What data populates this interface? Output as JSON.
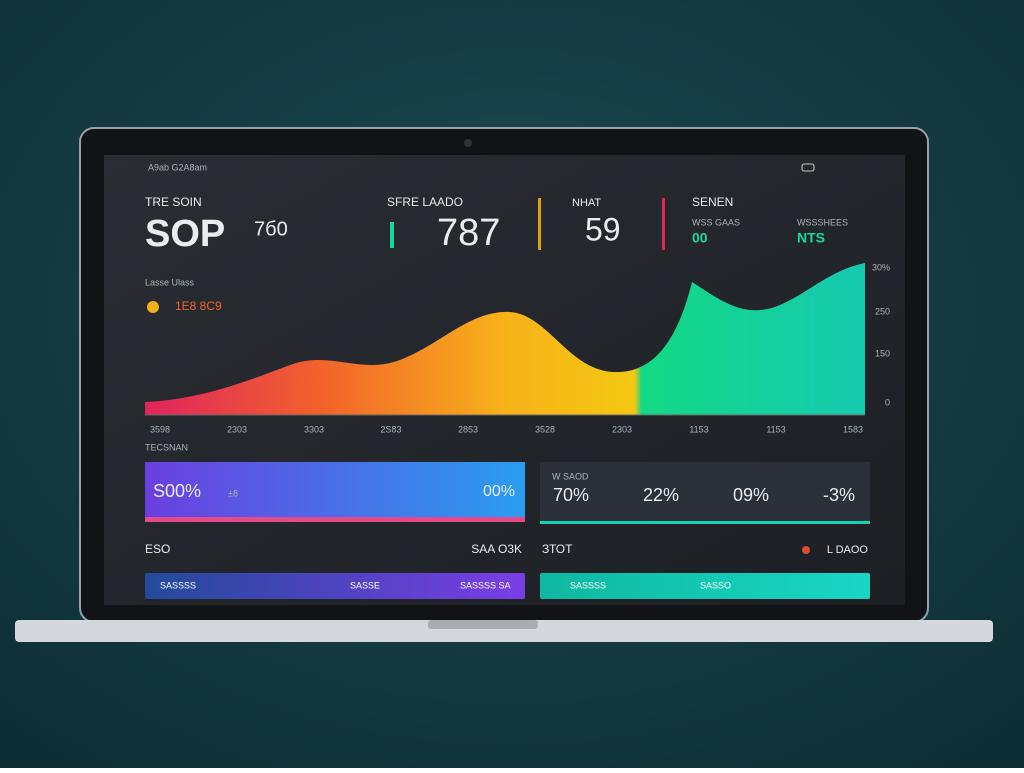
{
  "top_bar": {
    "title": "A9ab G2A8am"
  },
  "kpis": [
    {
      "label": "TRE SOIN",
      "value": "SOP",
      "sub": "7б0"
    },
    {
      "label": "SFRE LAADO",
      "value": "787"
    },
    {
      "label": "NHAT",
      "value": "59"
    },
    {
      "label": "SENEN",
      "items": [
        {
          "label": "WSS GAAS",
          "value": "00"
        },
        {
          "label": "WSSSHEES",
          "value": "NTS"
        }
      ]
    }
  ],
  "chart": {
    "title": "Lasse Ulass",
    "legend": "1Е8 8С9",
    "y_labels": [
      "30%",
      "250",
      "150",
      "0"
    ],
    "x_labels": [
      "3598",
      "2303",
      "3303",
      "2S83",
      "2853",
      "3528",
      "2303",
      "1153",
      "1153",
      "1583"
    ]
  },
  "section": {
    "title": "TECSNAN"
  },
  "gradient_card": {
    "value": "S00%",
    "sub": "±8",
    "right": "00%"
  },
  "metrics_card": {
    "label": "W SAOD",
    "values": [
      "70%",
      "22%",
      "09%",
      "-3%"
    ]
  },
  "footer_row": {
    "left": "ESO",
    "mid": "SAA O3K",
    "right_label": "ЗТОТ",
    "right_tag": "L DAOO"
  },
  "buttons": [
    {
      "texts": [
        "SASSSS",
        "SASSE",
        "SASSSS SA"
      ]
    },
    {
      "texts": [
        "SASSSS",
        "SASSO"
      ]
    }
  ]
}
